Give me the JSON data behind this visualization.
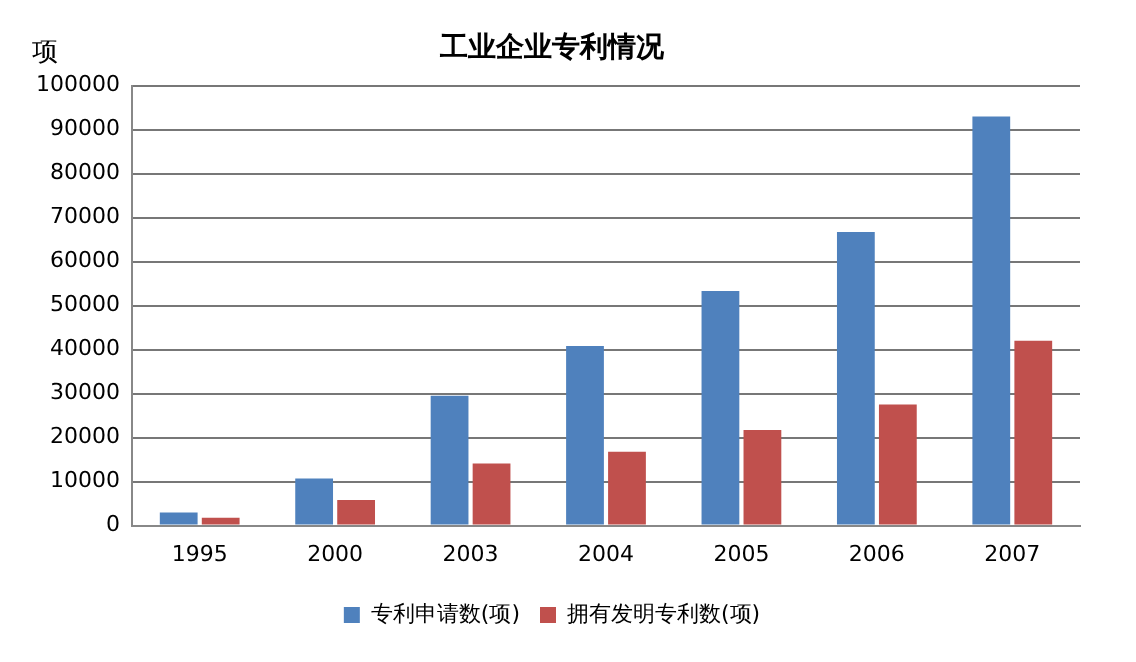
{
  "chart_data": {
    "type": "bar",
    "title": "工业企业专利情况",
    "ylabel": "项",
    "categories": [
      "1995",
      "2000",
      "2003",
      "2004",
      "2005",
      "2006",
      "2007"
    ],
    "series": [
      {
        "name": "专利申请数(项)",
        "color": "#4f81bd",
        "values": [
          3000,
          10700,
          29500,
          40800,
          53300,
          66700,
          93000
        ]
      },
      {
        "name": "拥有发明专利数(项)",
        "color": "#c0504d",
        "values": [
          1800,
          5800,
          14100,
          16800,
          21700,
          27500,
          42000
        ]
      }
    ],
    "ylim": [
      0,
      100000
    ],
    "yticks": [
      0,
      10000,
      20000,
      30000,
      40000,
      50000,
      60000,
      70000,
      80000,
      90000,
      100000
    ],
    "grid": "y",
    "legend": "bottom"
  }
}
